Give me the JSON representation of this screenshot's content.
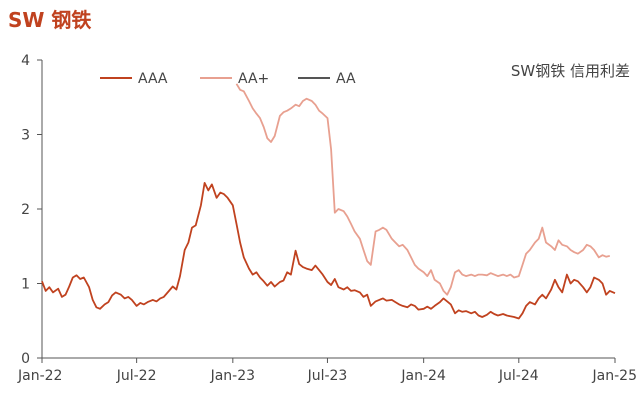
{
  "title": "SW 钢铁",
  "chart_data": {
    "type": "line",
    "subtitle": "SW钢铁 信用利差",
    "ylim": [
      0,
      4
    ],
    "yticks": [
      "0",
      "1",
      "2",
      "3",
      "4"
    ],
    "xlim": [
      "2022-01",
      "2025-01"
    ],
    "xticks": [
      "Jan-22",
      "Jul-22",
      "Jan-23",
      "Jul-23",
      "Jan-24",
      "Jul-24",
      "Jan-25"
    ],
    "legend_position": "top-left",
    "grid": false,
    "series": [
      {
        "name": "AAA",
        "color": "#c0421f",
        "points": [
          [
            "2022-01-01",
            1.03
          ],
          [
            "2022-01-08",
            0.9
          ],
          [
            "2022-01-15",
            0.95
          ],
          [
            "2022-01-22",
            0.88
          ],
          [
            "2022-02-01",
            0.93
          ],
          [
            "2022-02-08",
            0.82
          ],
          [
            "2022-02-15",
            0.85
          ],
          [
            "2022-02-22",
            0.96
          ],
          [
            "2022-03-01",
            1.08
          ],
          [
            "2022-03-08",
            1.11
          ],
          [
            "2022-03-15",
            1.06
          ],
          [
            "2022-03-22",
            1.08
          ],
          [
            "2022-04-01",
            0.95
          ],
          [
            "2022-04-08",
            0.78
          ],
          [
            "2022-04-15",
            0.68
          ],
          [
            "2022-04-22",
            0.66
          ],
          [
            "2022-05-01",
            0.72
          ],
          [
            "2022-05-08",
            0.75
          ],
          [
            "2022-05-15",
            0.84
          ],
          [
            "2022-05-22",
            0.88
          ],
          [
            "2022-06-01",
            0.85
          ],
          [
            "2022-06-08",
            0.8
          ],
          [
            "2022-06-15",
            0.82
          ],
          [
            "2022-06-22",
            0.78
          ],
          [
            "2022-07-01",
            0.7
          ],
          [
            "2022-07-08",
            0.74
          ],
          [
            "2022-07-15",
            0.72
          ],
          [
            "2022-07-22",
            0.75
          ],
          [
            "2022-08-01",
            0.78
          ],
          [
            "2022-08-08",
            0.76
          ],
          [
            "2022-08-15",
            0.8
          ],
          [
            "2022-08-22",
            0.82
          ],
          [
            "2022-09-01",
            0.9
          ],
          [
            "2022-09-08",
            0.96
          ],
          [
            "2022-09-15",
            0.92
          ],
          [
            "2022-09-22",
            1.1
          ],
          [
            "2022-10-01",
            1.45
          ],
          [
            "2022-10-08",
            1.55
          ],
          [
            "2022-10-15",
            1.75
          ],
          [
            "2022-10-22",
            1.78
          ],
          [
            "2022-11-01",
            2.05
          ],
          [
            "2022-11-08",
            2.35
          ],
          [
            "2022-11-15",
            2.25
          ],
          [
            "2022-11-22",
            2.33
          ],
          [
            "2022-12-01",
            2.15
          ],
          [
            "2022-12-08",
            2.22
          ],
          [
            "2022-12-15",
            2.2
          ],
          [
            "2022-12-22",
            2.15
          ],
          [
            "2023-01-01",
            2.05
          ],
          [
            "2023-01-08",
            1.8
          ],
          [
            "2023-01-15",
            1.55
          ],
          [
            "2023-01-22",
            1.35
          ],
          [
            "2023-02-01",
            1.2
          ],
          [
            "2023-02-08",
            1.12
          ],
          [
            "2023-02-15",
            1.15
          ],
          [
            "2023-02-22",
            1.08
          ],
          [
            "2023-03-01",
            1.03
          ],
          [
            "2023-03-08",
            0.97
          ],
          [
            "2023-03-15",
            1.02
          ],
          [
            "2023-03-22",
            0.96
          ],
          [
            "2023-04-01",
            1.02
          ],
          [
            "2023-04-08",
            1.04
          ],
          [
            "2023-04-15",
            1.15
          ],
          [
            "2023-04-22",
            1.12
          ],
          [
            "2023-05-01",
            1.44
          ],
          [
            "2023-05-08",
            1.26
          ],
          [
            "2023-05-15",
            1.22
          ],
          [
            "2023-05-22",
            1.2
          ],
          [
            "2023-06-01",
            1.18
          ],
          [
            "2023-06-08",
            1.24
          ],
          [
            "2023-06-15",
            1.18
          ],
          [
            "2023-06-22",
            1.12
          ],
          [
            "2023-07-01",
            1.02
          ],
          [
            "2023-07-08",
            0.98
          ],
          [
            "2023-07-15",
            1.06
          ],
          [
            "2023-07-22",
            0.95
          ],
          [
            "2023-08-01",
            0.92
          ],
          [
            "2023-08-08",
            0.95
          ],
          [
            "2023-08-15",
            0.9
          ],
          [
            "2023-08-22",
            0.91
          ],
          [
            "2023-09-01",
            0.88
          ],
          [
            "2023-09-08",
            0.82
          ],
          [
            "2023-09-15",
            0.85
          ],
          [
            "2023-09-22",
            0.7
          ],
          [
            "2023-10-01",
            0.76
          ],
          [
            "2023-10-08",
            0.78
          ],
          [
            "2023-10-15",
            0.8
          ],
          [
            "2023-10-22",
            0.77
          ],
          [
            "2023-11-01",
            0.78
          ],
          [
            "2023-11-08",
            0.75
          ],
          [
            "2023-11-15",
            0.72
          ],
          [
            "2023-11-22",
            0.7
          ],
          [
            "2023-12-01",
            0.68
          ],
          [
            "2023-12-08",
            0.72
          ],
          [
            "2023-12-15",
            0.7
          ],
          [
            "2023-12-22",
            0.65
          ],
          [
            "2024-01-01",
            0.66
          ],
          [
            "2024-01-08",
            0.69
          ],
          [
            "2024-01-15",
            0.66
          ],
          [
            "2024-01-22",
            0.7
          ],
          [
            "2024-02-01",
            0.75
          ],
          [
            "2024-02-08",
            0.8
          ],
          [
            "2024-02-15",
            0.76
          ],
          [
            "2024-02-22",
            0.72
          ],
          [
            "2024-03-01",
            0.6
          ],
          [
            "2024-03-08",
            0.64
          ],
          [
            "2024-03-15",
            0.62
          ],
          [
            "2024-03-22",
            0.63
          ],
          [
            "2024-04-01",
            0.6
          ],
          [
            "2024-04-08",
            0.62
          ],
          [
            "2024-04-15",
            0.57
          ],
          [
            "2024-04-22",
            0.55
          ],
          [
            "2024-05-01",
            0.58
          ],
          [
            "2024-05-08",
            0.62
          ],
          [
            "2024-05-15",
            0.59
          ],
          [
            "2024-05-22",
            0.57
          ],
          [
            "2024-06-01",
            0.59
          ],
          [
            "2024-06-08",
            0.57
          ],
          [
            "2024-06-15",
            0.56
          ],
          [
            "2024-06-22",
            0.55
          ],
          [
            "2024-07-01",
            0.53
          ],
          [
            "2024-07-08",
            0.6
          ],
          [
            "2024-07-15",
            0.7
          ],
          [
            "2024-07-22",
            0.75
          ],
          [
            "2024-08-01",
            0.72
          ],
          [
            "2024-08-08",
            0.8
          ],
          [
            "2024-08-15",
            0.85
          ],
          [
            "2024-08-22",
            0.8
          ],
          [
            "2024-09-01",
            0.92
          ],
          [
            "2024-09-08",
            1.05
          ],
          [
            "2024-09-15",
            0.95
          ],
          [
            "2024-09-22",
            0.88
          ],
          [
            "2024-10-01",
            1.12
          ],
          [
            "2024-10-08",
            1.0
          ],
          [
            "2024-10-15",
            1.05
          ],
          [
            "2024-10-22",
            1.03
          ],
          [
            "2024-11-01",
            0.95
          ],
          [
            "2024-11-08",
            0.88
          ],
          [
            "2024-11-15",
            0.95
          ],
          [
            "2024-11-22",
            1.08
          ],
          [
            "2024-12-01",
            1.05
          ],
          [
            "2024-12-08",
            1.0
          ],
          [
            "2024-12-15",
            0.85
          ],
          [
            "2024-12-22",
            0.9
          ],
          [
            "2025-01-01",
            0.87
          ]
        ]
      },
      {
        "name": "AA+",
        "color": "#e8a090",
        "points": [
          [
            "2023-01-08",
            3.68
          ],
          [
            "2023-01-15",
            3.6
          ],
          [
            "2023-01-22",
            3.58
          ],
          [
            "2023-02-01",
            3.45
          ],
          [
            "2023-02-08",
            3.35
          ],
          [
            "2023-02-15",
            3.28
          ],
          [
            "2023-02-22",
            3.22
          ],
          [
            "2023-03-01",
            3.1
          ],
          [
            "2023-03-08",
            2.95
          ],
          [
            "2023-03-15",
            2.9
          ],
          [
            "2023-03-22",
            2.98
          ],
          [
            "2023-04-01",
            3.25
          ],
          [
            "2023-04-08",
            3.3
          ],
          [
            "2023-04-15",
            3.32
          ],
          [
            "2023-04-22",
            3.35
          ],
          [
            "2023-05-01",
            3.4
          ],
          [
            "2023-05-08",
            3.38
          ],
          [
            "2023-05-15",
            3.45
          ],
          [
            "2023-05-22",
            3.48
          ],
          [
            "2023-06-01",
            3.45
          ],
          [
            "2023-06-08",
            3.4
          ],
          [
            "2023-06-15",
            3.32
          ],
          [
            "2023-06-22",
            3.28
          ],
          [
            "2023-07-01",
            3.22
          ],
          [
            "2023-07-08",
            2.8
          ],
          [
            "2023-07-15",
            1.95
          ],
          [
            "2023-07-22",
            2.0
          ],
          [
            "2023-08-01",
            1.97
          ],
          [
            "2023-08-08",
            1.9
          ],
          [
            "2023-08-15",
            1.8
          ],
          [
            "2023-08-22",
            1.7
          ],
          [
            "2023-09-01",
            1.6
          ],
          [
            "2023-09-08",
            1.45
          ],
          [
            "2023-09-15",
            1.3
          ],
          [
            "2023-09-22",
            1.25
          ],
          [
            "2023-10-01",
            1.7
          ],
          [
            "2023-10-08",
            1.72
          ],
          [
            "2023-10-15",
            1.75
          ],
          [
            "2023-10-22",
            1.72
          ],
          [
            "2023-11-01",
            1.6
          ],
          [
            "2023-11-08",
            1.55
          ],
          [
            "2023-11-15",
            1.5
          ],
          [
            "2023-11-22",
            1.52
          ],
          [
            "2023-12-01",
            1.45
          ],
          [
            "2023-12-08",
            1.35
          ],
          [
            "2023-12-15",
            1.25
          ],
          [
            "2023-12-22",
            1.2
          ],
          [
            "2024-01-01",
            1.15
          ],
          [
            "2024-01-08",
            1.1
          ],
          [
            "2024-01-15",
            1.18
          ],
          [
            "2024-01-22",
            1.05
          ],
          [
            "2024-02-01",
            1.0
          ],
          [
            "2024-02-08",
            0.9
          ],
          [
            "2024-02-15",
            0.85
          ],
          [
            "2024-02-22",
            0.95
          ],
          [
            "2024-03-01",
            1.15
          ],
          [
            "2024-03-08",
            1.18
          ],
          [
            "2024-03-15",
            1.12
          ],
          [
            "2024-03-22",
            1.1
          ],
          [
            "2024-04-01",
            1.12
          ],
          [
            "2024-04-08",
            1.1
          ],
          [
            "2024-04-15",
            1.12
          ],
          [
            "2024-04-22",
            1.12
          ],
          [
            "2024-05-01",
            1.11
          ],
          [
            "2024-05-08",
            1.14
          ],
          [
            "2024-05-15",
            1.12
          ],
          [
            "2024-05-22",
            1.1
          ],
          [
            "2024-06-01",
            1.12
          ],
          [
            "2024-06-08",
            1.1
          ],
          [
            "2024-06-15",
            1.12
          ],
          [
            "2024-06-22",
            1.08
          ],
          [
            "2024-07-01",
            1.1
          ],
          [
            "2024-07-08",
            1.25
          ],
          [
            "2024-07-15",
            1.4
          ],
          [
            "2024-07-22",
            1.45
          ],
          [
            "2024-08-01",
            1.55
          ],
          [
            "2024-08-08",
            1.6
          ],
          [
            "2024-08-15",
            1.75
          ],
          [
            "2024-08-22",
            1.55
          ],
          [
            "2024-09-01",
            1.5
          ],
          [
            "2024-09-08",
            1.45
          ],
          [
            "2024-09-15",
            1.58
          ],
          [
            "2024-09-22",
            1.52
          ],
          [
            "2024-10-01",
            1.5
          ],
          [
            "2024-10-08",
            1.45
          ],
          [
            "2024-10-15",
            1.42
          ],
          [
            "2024-10-22",
            1.4
          ],
          [
            "2024-11-01",
            1.45
          ],
          [
            "2024-11-08",
            1.52
          ],
          [
            "2024-11-15",
            1.5
          ],
          [
            "2024-11-22",
            1.45
          ],
          [
            "2024-12-01",
            1.35
          ],
          [
            "2024-12-08",
            1.38
          ],
          [
            "2024-12-15",
            1.36
          ],
          [
            "2024-12-22",
            1.37
          ]
        ]
      },
      {
        "name": "AA",
        "color": "#555555",
        "points": []
      }
    ]
  }
}
